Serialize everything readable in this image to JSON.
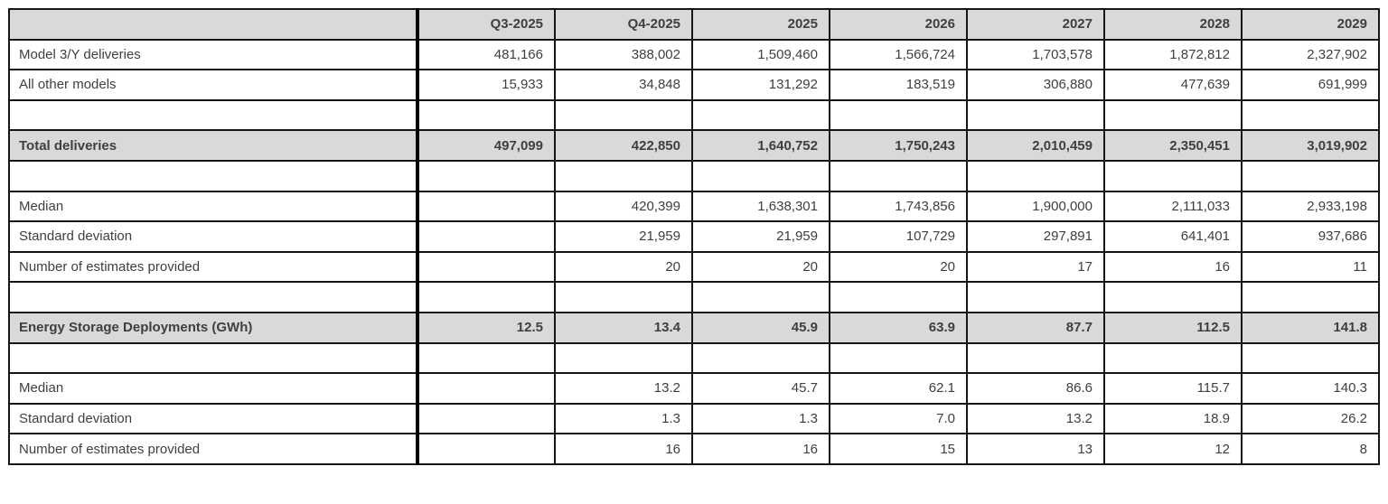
{
  "colors": {
    "header_bg": "#d9d9d9",
    "highlight_bg": "#d9d9d9",
    "cell_bg": "#ffffff",
    "border": "#161616",
    "thick_border": "#000000",
    "text": "#3f3f3f"
  },
  "chart_data": {
    "type": "table",
    "title": "",
    "columns": [
      "",
      "Q3-2025",
      "Q4-2025",
      "2025",
      "2026",
      "2027",
      "2028",
      "2029"
    ],
    "rows": [
      {
        "type": "data",
        "label": "Model 3/Y deliveries",
        "values": [
          "481,166",
          "388,002",
          "1,509,460",
          "1,566,724",
          "1,703,578",
          "1,872,812",
          "2,327,902"
        ]
      },
      {
        "type": "data",
        "label": "All other models",
        "values": [
          "15,933",
          "34,848",
          "131,292",
          "183,519",
          "306,880",
          "477,639",
          "691,999"
        ]
      },
      {
        "type": "blank",
        "label": "",
        "values": [
          "",
          "",
          "",
          "",
          "",
          "",
          ""
        ]
      },
      {
        "type": "highlight",
        "label": "Total deliveries",
        "values": [
          "497,099",
          "422,850",
          "1,640,752",
          "1,750,243",
          "2,010,459",
          "2,350,451",
          "3,019,902"
        ]
      },
      {
        "type": "blank",
        "label": "",
        "values": [
          "",
          "",
          "",
          "",
          "",
          "",
          ""
        ]
      },
      {
        "type": "data",
        "label": "Median",
        "values": [
          "",
          "420,399",
          "1,638,301",
          "1,743,856",
          "1,900,000",
          "2,111,033",
          "2,933,198"
        ]
      },
      {
        "type": "data",
        "label": "Standard deviation",
        "values": [
          "",
          "21,959",
          "21,959",
          "107,729",
          "297,891",
          "641,401",
          "937,686"
        ]
      },
      {
        "type": "data",
        "label": "Number of estimates provided",
        "values": [
          "",
          "20",
          "20",
          "20",
          "17",
          "16",
          "11"
        ]
      },
      {
        "type": "blank",
        "label": "",
        "values": [
          "",
          "",
          "",
          "",
          "",
          "",
          ""
        ]
      },
      {
        "type": "highlight",
        "label": "Energy Storage Deployments (GWh)",
        "values": [
          "12.5",
          "13.4",
          "45.9",
          "63.9",
          "87.7",
          "112.5",
          "141.8"
        ]
      },
      {
        "type": "blank",
        "label": "",
        "values": [
          "",
          "",
          "",
          "",
          "",
          "",
          ""
        ]
      },
      {
        "type": "data",
        "label": "Median",
        "values": [
          "",
          "13.2",
          "45.7",
          "62.1",
          "86.6",
          "115.7",
          "140.3"
        ]
      },
      {
        "type": "data",
        "label": "Standard deviation",
        "values": [
          "",
          "1.3",
          "1.3",
          "7.0",
          "13.2",
          "18.9",
          "26.2"
        ]
      },
      {
        "type": "data",
        "label": "Number of estimates provided",
        "values": [
          "",
          "16",
          "16",
          "15",
          "13",
          "12",
          "8"
        ]
      }
    ]
  }
}
